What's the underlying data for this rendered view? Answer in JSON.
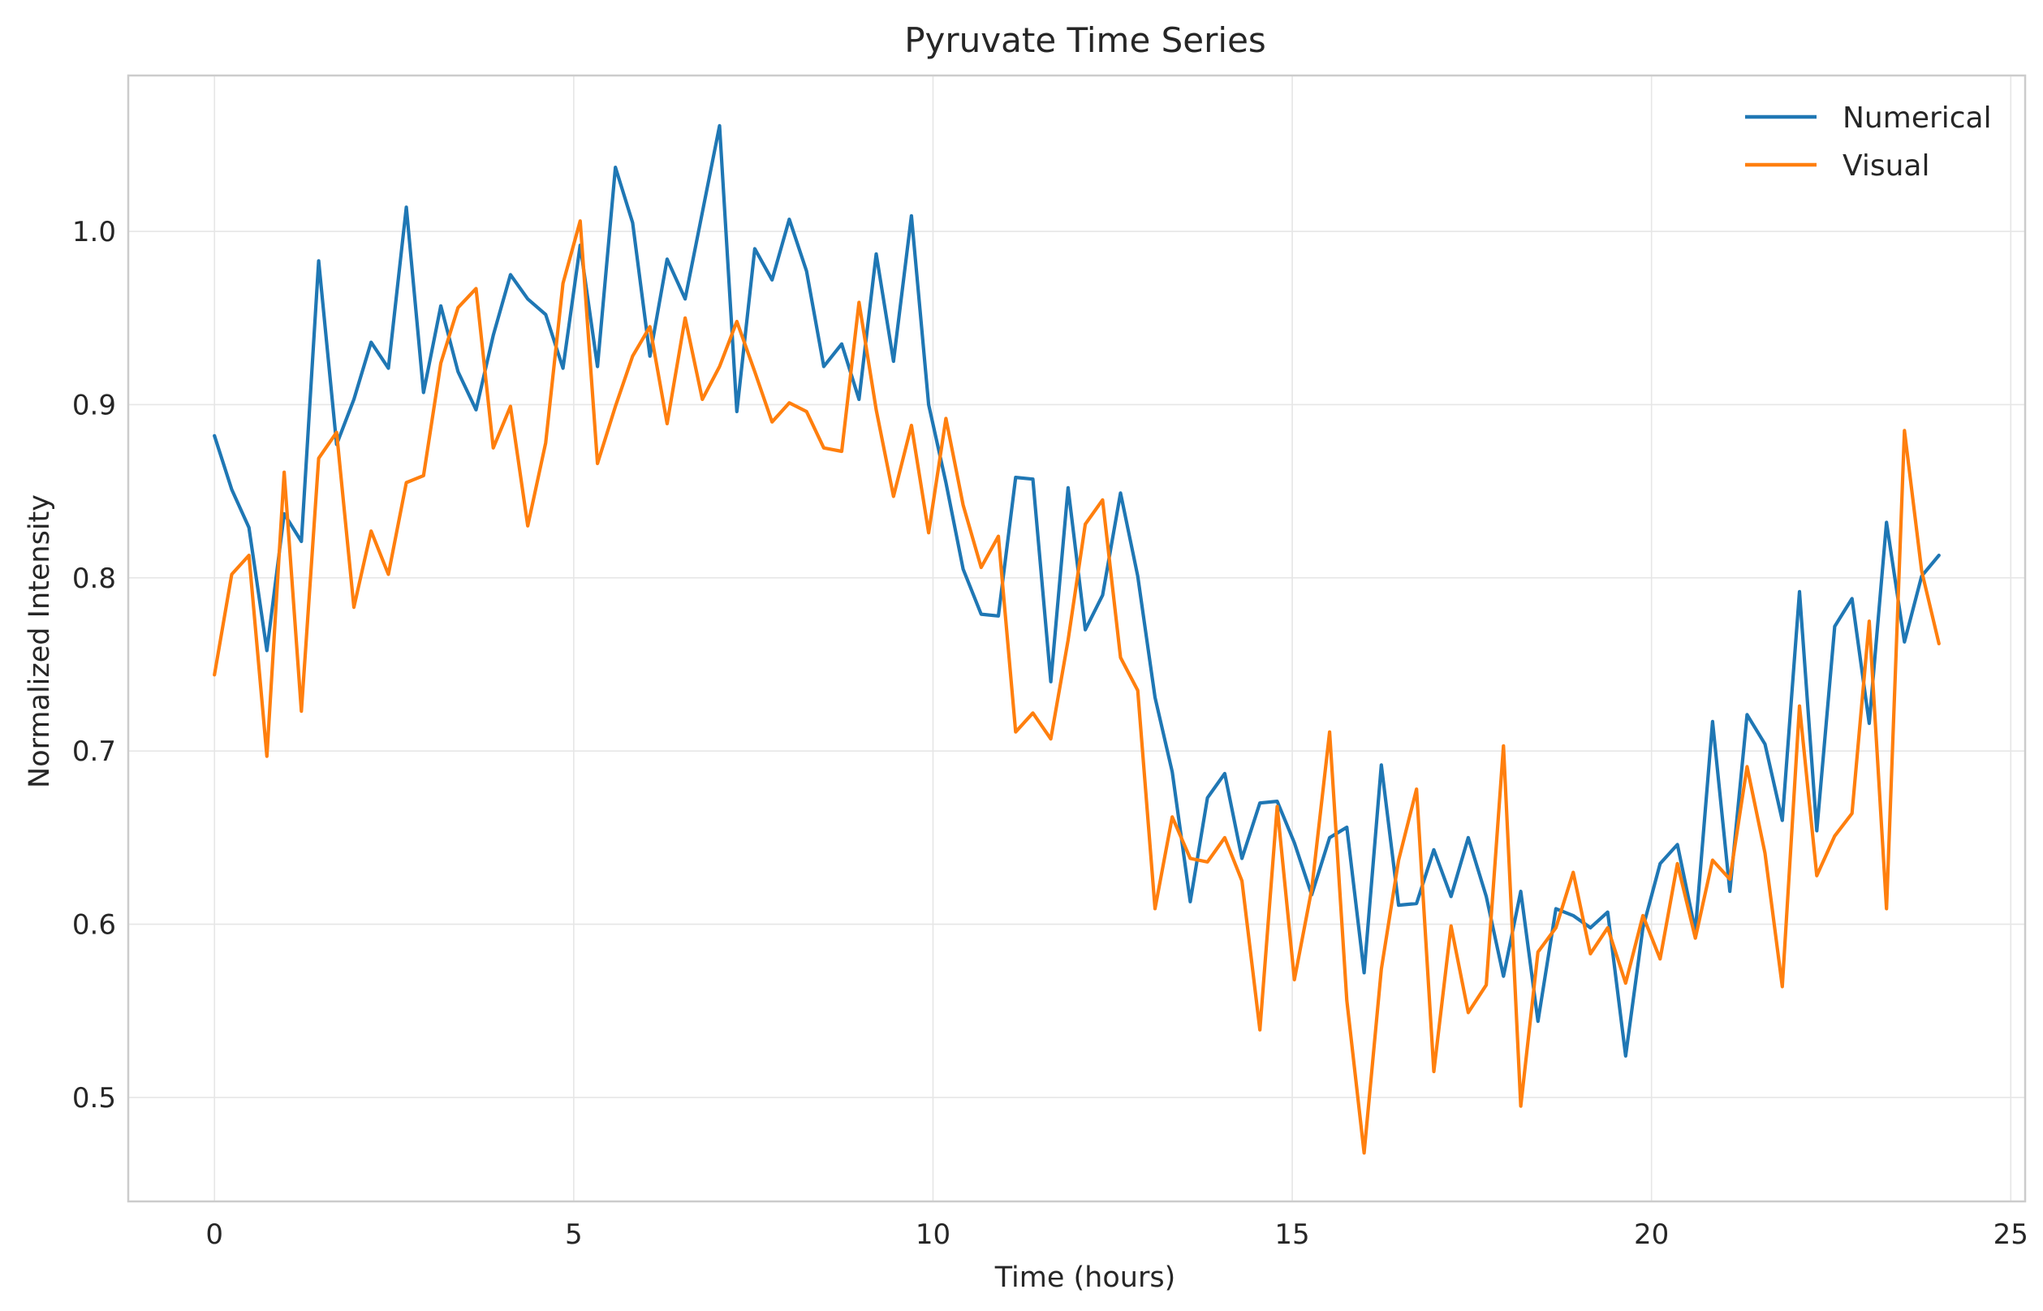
{
  "chart_data": {
    "type": "line",
    "title": "Pyruvate Time Series",
    "xlabel": "Time (hours)",
    "ylabel": "Normalized Intensity",
    "xlim": [
      -1.2,
      25.2
    ],
    "ylim": [
      0.44,
      1.09
    ],
    "xticks": [
      0,
      5,
      10,
      15,
      20,
      25
    ],
    "xtick_labels": [
      "0",
      "5",
      "10",
      "15",
      "20",
      "25"
    ],
    "yticks": [
      0.5,
      0.6,
      0.7,
      0.8,
      0.9,
      1.0
    ],
    "ytick_labels": [
      "0.5",
      "0.6",
      "0.7",
      "0.8",
      "0.9",
      "1.0"
    ],
    "grid": true,
    "legend_position": "top-right",
    "x": [
      0,
      0.24,
      0.48,
      0.73,
      0.97,
      1.21,
      1.45,
      1.7,
      1.94,
      2.18,
      2.42,
      2.67,
      2.91,
      3.15,
      3.39,
      3.64,
      3.88,
      4.12,
      4.36,
      4.61,
      4.85,
      5.09,
      5.33,
      5.58,
      5.82,
      6.06,
      6.3,
      6.55,
      6.79,
      7.03,
      7.27,
      7.52,
      7.76,
      8.0,
      8.24,
      8.48,
      8.73,
      8.97,
      9.21,
      9.45,
      9.7,
      9.94,
      10.18,
      10.42,
      10.67,
      10.91,
      11.15,
      11.39,
      11.64,
      11.88,
      12.12,
      12.36,
      12.61,
      12.85,
      13.09,
      13.33,
      13.58,
      13.82,
      14.06,
      14.3,
      14.55,
      14.79,
      15.03,
      15.27,
      15.52,
      15.76,
      16.0,
      16.24,
      16.48,
      16.73,
      16.97,
      17.21,
      17.45,
      17.7,
      17.94,
      18.18,
      18.42,
      18.67,
      18.91,
      19.15,
      19.39,
      19.64,
      19.88,
      20.12,
      20.36,
      20.61,
      20.85,
      21.09,
      21.33,
      21.58,
      21.82,
      22.06,
      22.3,
      22.55,
      22.79,
      23.03,
      23.27,
      23.52,
      23.76,
      24.0
    ],
    "series": [
      {
        "name": "Numerical",
        "color": "#1f77b4",
        "values": [
          0.882,
          0.851,
          0.829,
          0.758,
          0.837,
          0.821,
          0.983,
          0.877,
          0.903,
          0.936,
          0.921,
          1.014,
          0.907,
          0.957,
          0.919,
          0.897,
          0.94,
          0.975,
          0.961,
          0.952,
          0.921,
          0.992,
          0.922,
          1.037,
          1.005,
          0.928,
          0.984,
          0.961,
          1.011,
          1.061,
          0.896,
          0.99,
          0.972,
          1.007,
          0.977,
          0.922,
          0.935,
          0.903,
          0.987,
          0.925,
          1.009,
          0.9,
          0.855,
          0.805,
          0.779,
          0.778,
          0.858,
          0.857,
          0.74,
          0.852,
          0.77,
          0.79,
          0.849,
          0.801,
          0.731,
          0.688,
          0.613,
          0.673,
          0.687,
          0.638,
          0.67,
          0.671,
          0.647,
          0.617,
          0.65,
          0.656,
          0.572,
          0.692,
          0.611,
          0.612,
          0.643,
          0.616,
          0.65,
          0.616,
          0.57,
          0.619,
          0.544,
          0.609,
          0.605,
          0.598,
          0.607,
          0.524,
          0.598,
          0.635,
          0.646,
          0.596,
          0.717,
          0.619,
          0.721,
          0.704,
          0.66,
          0.792,
          0.654,
          0.772,
          0.788,
          0.716,
          0.832,
          0.763,
          0.801,
          0.813
        ]
      },
      {
        "name": "Visual",
        "color": "#ff7f0e",
        "values": [
          0.744,
          0.802,
          0.813,
          0.697,
          0.861,
          0.723,
          0.869,
          0.884,
          0.783,
          0.827,
          0.802,
          0.855,
          0.859,
          0.924,
          0.956,
          0.967,
          0.875,
          0.899,
          0.83,
          0.878,
          0.97,
          1.006,
          0.866,
          0.899,
          0.928,
          0.945,
          0.889,
          0.95,
          0.903,
          0.922,
          0.948,
          0.919,
          0.89,
          0.901,
          0.896,
          0.875,
          0.873,
          0.959,
          0.897,
          0.847,
          0.888,
          0.826,
          0.892,
          0.842,
          0.806,
          0.824,
          0.711,
          0.722,
          0.707,
          0.764,
          0.831,
          0.845,
          0.754,
          0.735,
          0.609,
          0.662,
          0.638,
          0.636,
          0.65,
          0.625,
          0.539,
          0.668,
          0.568,
          0.62,
          0.711,
          0.556,
          0.468,
          0.574,
          0.637,
          0.678,
          0.515,
          0.599,
          0.549,
          0.565,
          0.703,
          0.495,
          0.584,
          0.598,
          0.63,
          0.583,
          0.598,
          0.566,
          0.605,
          0.58,
          0.635,
          0.592,
          0.637,
          0.626,
          0.691,
          0.641,
          0.564,
          0.726,
          0.628,
          0.651,
          0.664,
          0.775,
          0.609,
          0.885,
          0.804,
          0.762
        ]
      }
    ]
  }
}
